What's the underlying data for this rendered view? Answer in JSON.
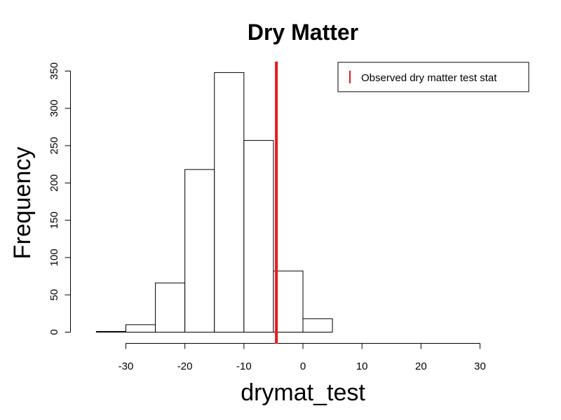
{
  "chart_data": {
    "type": "bar",
    "subtype": "histogram",
    "title": "Dry Matter",
    "xlabel": "drymat_test",
    "ylabel": "Frequency",
    "bins": [
      {
        "from": -35,
        "to": -30,
        "count": 1
      },
      {
        "from": -30,
        "to": -25,
        "count": 10
      },
      {
        "from": -25,
        "to": -20,
        "count": 66
      },
      {
        "from": -20,
        "to": -15,
        "count": 218
      },
      {
        "from": -15,
        "to": -10,
        "count": 348
      },
      {
        "from": -10,
        "to": -5,
        "count": 257
      },
      {
        "from": -5,
        "to": 0,
        "count": 82
      },
      {
        "from": 0,
        "to": 5,
        "count": 18
      }
    ],
    "xlim": [
      -30,
      30
    ],
    "ylim": [
      0,
      350
    ],
    "xticks": [
      -30,
      -20,
      -10,
      0,
      10,
      20,
      30
    ],
    "yticks": [
      0,
      50,
      100,
      150,
      200,
      250,
      300,
      350
    ],
    "reference_line": {
      "x": -4.5,
      "color": "#e41a1c",
      "label": "Observed dry matter test stat"
    },
    "grid": false,
    "legend_position": "top-right",
    "bar_fill": "#ffffff",
    "bar_stroke": "#000000"
  }
}
